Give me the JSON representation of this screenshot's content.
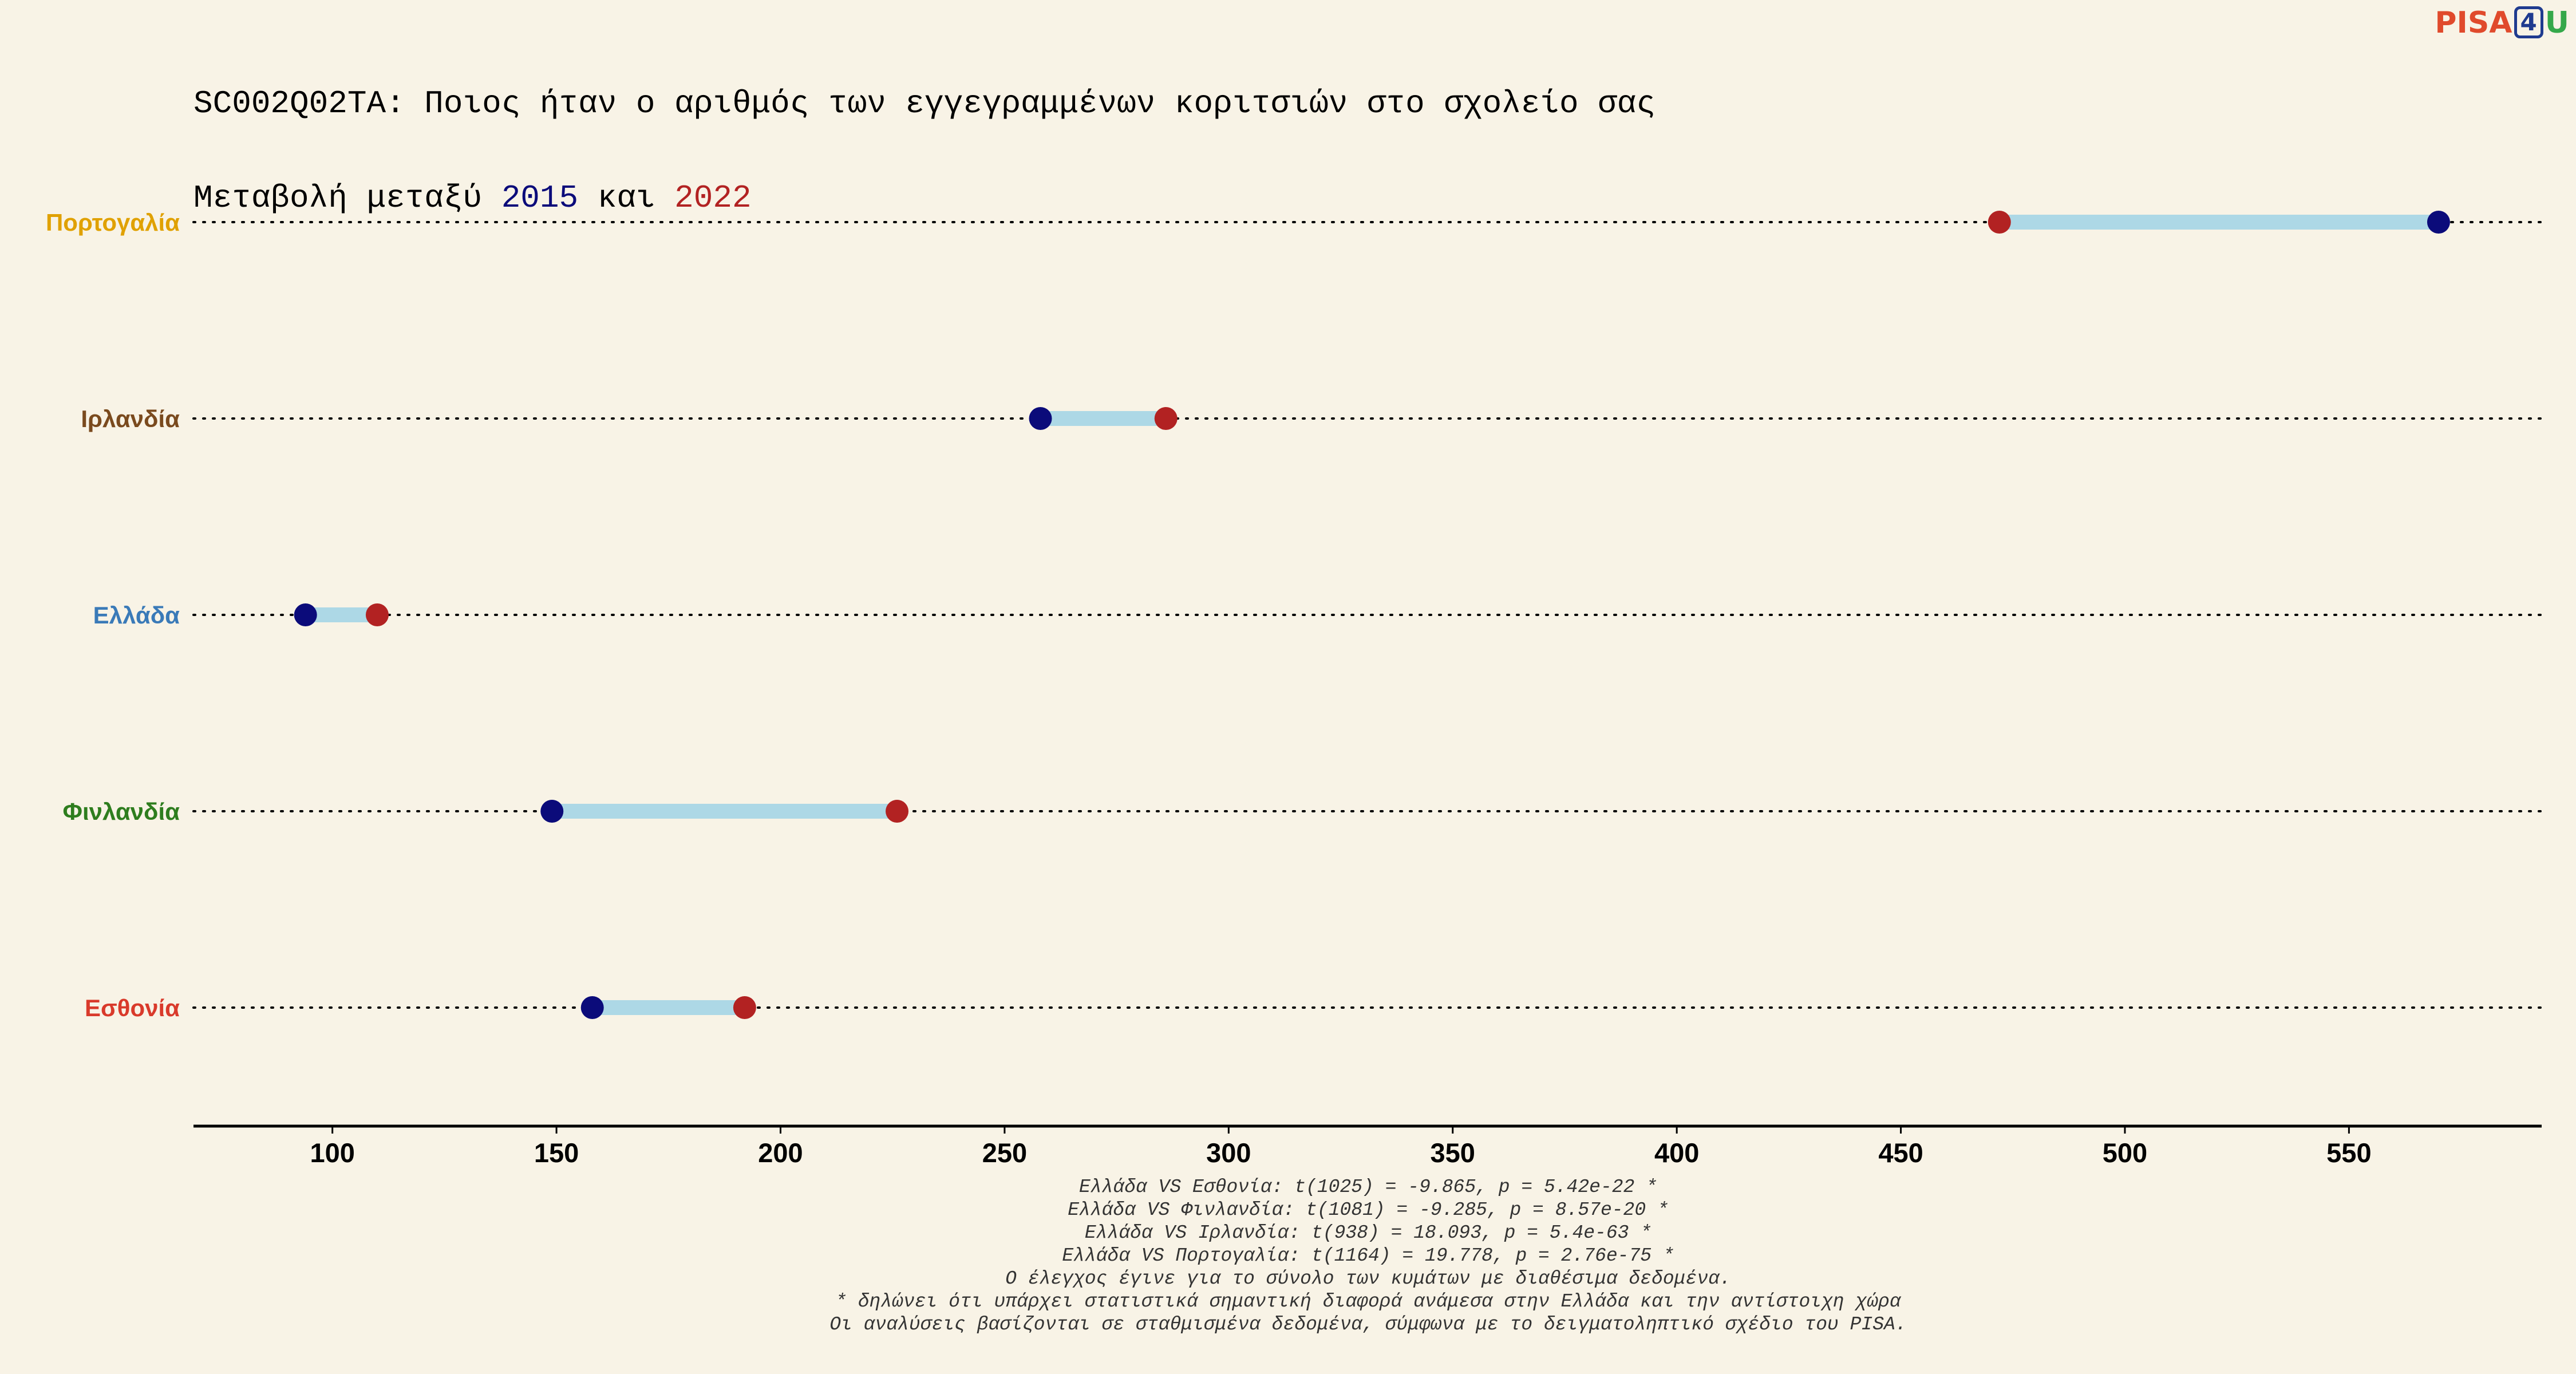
{
  "title": {
    "line1": "SC002Q02TA: Ποιος ήταν ο αριθμός των εγγεγραμμένων κοριτσιών στο σχολείο σας",
    "line2_prefix": "Μεταβολή μεταξύ ",
    "year_a": "2015",
    "line2_middle": " και ",
    "year_b": "2022"
  },
  "logo": {
    "text_pisa": "PISA",
    "text_four": "4",
    "text_u": "U"
  },
  "colors": {
    "background": "#f8f3e6",
    "year_2015": "#0b0b7a",
    "year_2022": "#b22222",
    "connector": "#add8e6"
  },
  "chart_data": {
    "type": "dumbbell",
    "series": [
      {
        "name": "2015",
        "color": "#0b0b7a"
      },
      {
        "name": "2022",
        "color": "#b22222"
      }
    ],
    "categories": [
      {
        "label": "Πορτογαλία",
        "label_color": "#e0a100",
        "v2015": 570,
        "v2022": 472
      },
      {
        "label": "Ιρλανδία",
        "label_color": "#7a4a1e",
        "v2015": 258,
        "v2022": 286
      },
      {
        "label": "Ελλάδα",
        "label_color": "#3a7ab8",
        "v2015": 94,
        "v2022": 110
      },
      {
        "label": "Φινλανδία",
        "label_color": "#2e7d1e",
        "v2015": 149,
        "v2022": 226
      },
      {
        "label": "Εσθονία",
        "label_color": "#d93a2b",
        "v2015": 158,
        "v2022": 192
      }
    ],
    "xlim": [
      69,
      593
    ],
    "xticks": [
      100,
      150,
      200,
      250,
      300,
      350,
      400,
      450,
      500,
      550
    ],
    "grid": "dotted horizontal guide per category"
  },
  "notes": [
    "Ελλάδα VS Εσθονία: t(1025) = -9.865, p = 5.42e-22 *",
    "Ελλάδα VS Φινλανδία: t(1081) = -9.285, p = 8.57e-20 *",
    "Ελλάδα VS Ιρλανδία: t(938) = 18.093, p = 5.4e-63 *",
    "Ελλάδα VS Πορτογαλία: t(1164) = 19.778, p = 2.76e-75 *",
    "Ο έλεγχος έγινε για το σύνολο των κυμάτων με διαθέσιμα δεδομένα.",
    "* δηλώνει ότι υπάρχει στατιστικά σημαντική διαφορά ανάμεσα στην Ελλάδα και την αντίστοιχη χώρα",
    "Οι αναλύσεις βασίζονται σε σταθμισμένα δεδομένα, σύμφωνα με το δειγματοληπτικό σχέδιο του PISA."
  ]
}
